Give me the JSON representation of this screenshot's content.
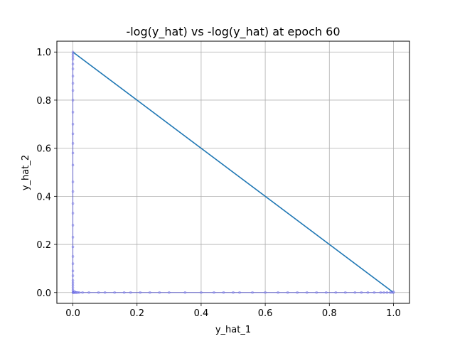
{
  "chart_data": {
    "type": "scatter",
    "title": "-log(y_hat) vs -log(y_hat) at epoch 60",
    "xlabel": "y_hat_1",
    "ylabel": "y_hat_2",
    "xlim": [
      -0.05,
      1.05
    ],
    "ylim": [
      -0.045,
      1.045
    ],
    "xticks": [
      "0.0",
      "0.2",
      "0.4",
      "0.6",
      "0.8",
      "1.0"
    ],
    "yticks": [
      "0.0",
      "0.2",
      "0.4",
      "0.6",
      "0.8",
      "1.0"
    ],
    "grid": true,
    "line": {
      "x": [
        0.0,
        1.0
      ],
      "y": [
        1.0,
        0.0
      ],
      "color": "#1f77b4"
    },
    "points": {
      "color": "#0000cc",
      "x": [
        0.0,
        0.0,
        0.0,
        0.0,
        0.0,
        0.0,
        0.0,
        0.0,
        0.0,
        0.0,
        0.0,
        0.0,
        0.0,
        0.0,
        0.0,
        0.0,
        0.0,
        0.0,
        0.0,
        0.0,
        0.0,
        0.0,
        0.0,
        0.0,
        0.0,
        0.0,
        0.0,
        0.0,
        0.0,
        0.0,
        0.0,
        0.0,
        0.0,
        0.001,
        0.002,
        0.003,
        0.005,
        0.008,
        0.012,
        0.02,
        0.03,
        0.05,
        0.08,
        0.1,
        0.13,
        0.16,
        0.18,
        0.21,
        0.24,
        0.27,
        0.3,
        0.35,
        0.4,
        0.44,
        0.47,
        0.5,
        0.52,
        0.56,
        0.6,
        0.64,
        0.67,
        0.7,
        0.73,
        0.76,
        0.79,
        0.82,
        0.85,
        0.88,
        0.9,
        0.92,
        0.94,
        0.96,
        0.97,
        0.98,
        0.99,
        0.995,
        1.0,
        1.0,
        0.01,
        0.015,
        0.005
      ],
      "y": [
        1.0,
        0.99,
        0.98,
        0.97,
        0.95,
        0.93,
        0.9,
        0.87,
        0.84,
        0.8,
        0.75,
        0.7,
        0.66,
        0.62,
        0.58,
        0.53,
        0.46,
        0.42,
        0.37,
        0.33,
        0.28,
        0.23,
        0.19,
        0.15,
        0.12,
        0.09,
        0.07,
        0.05,
        0.04,
        0.03,
        0.02,
        0.01,
        0.0,
        0.0,
        0.0,
        0.0,
        0.0,
        0.0,
        0.0,
        0.0,
        0.0,
        0.0,
        0.0,
        0.0,
        0.0,
        0.0,
        0.0,
        0.0,
        0.0,
        0.0,
        0.0,
        0.0,
        0.0,
        0.0,
        0.0,
        0.0,
        0.0,
        0.0,
        0.0,
        0.0,
        0.0,
        0.0,
        0.0,
        0.0,
        0.0,
        0.0,
        0.0,
        0.0,
        0.0,
        0.0,
        0.0,
        0.0,
        0.0,
        0.0,
        0.0,
        0.0,
        0.0,
        0.003,
        0.0,
        0.0,
        0.005
      ]
    }
  }
}
